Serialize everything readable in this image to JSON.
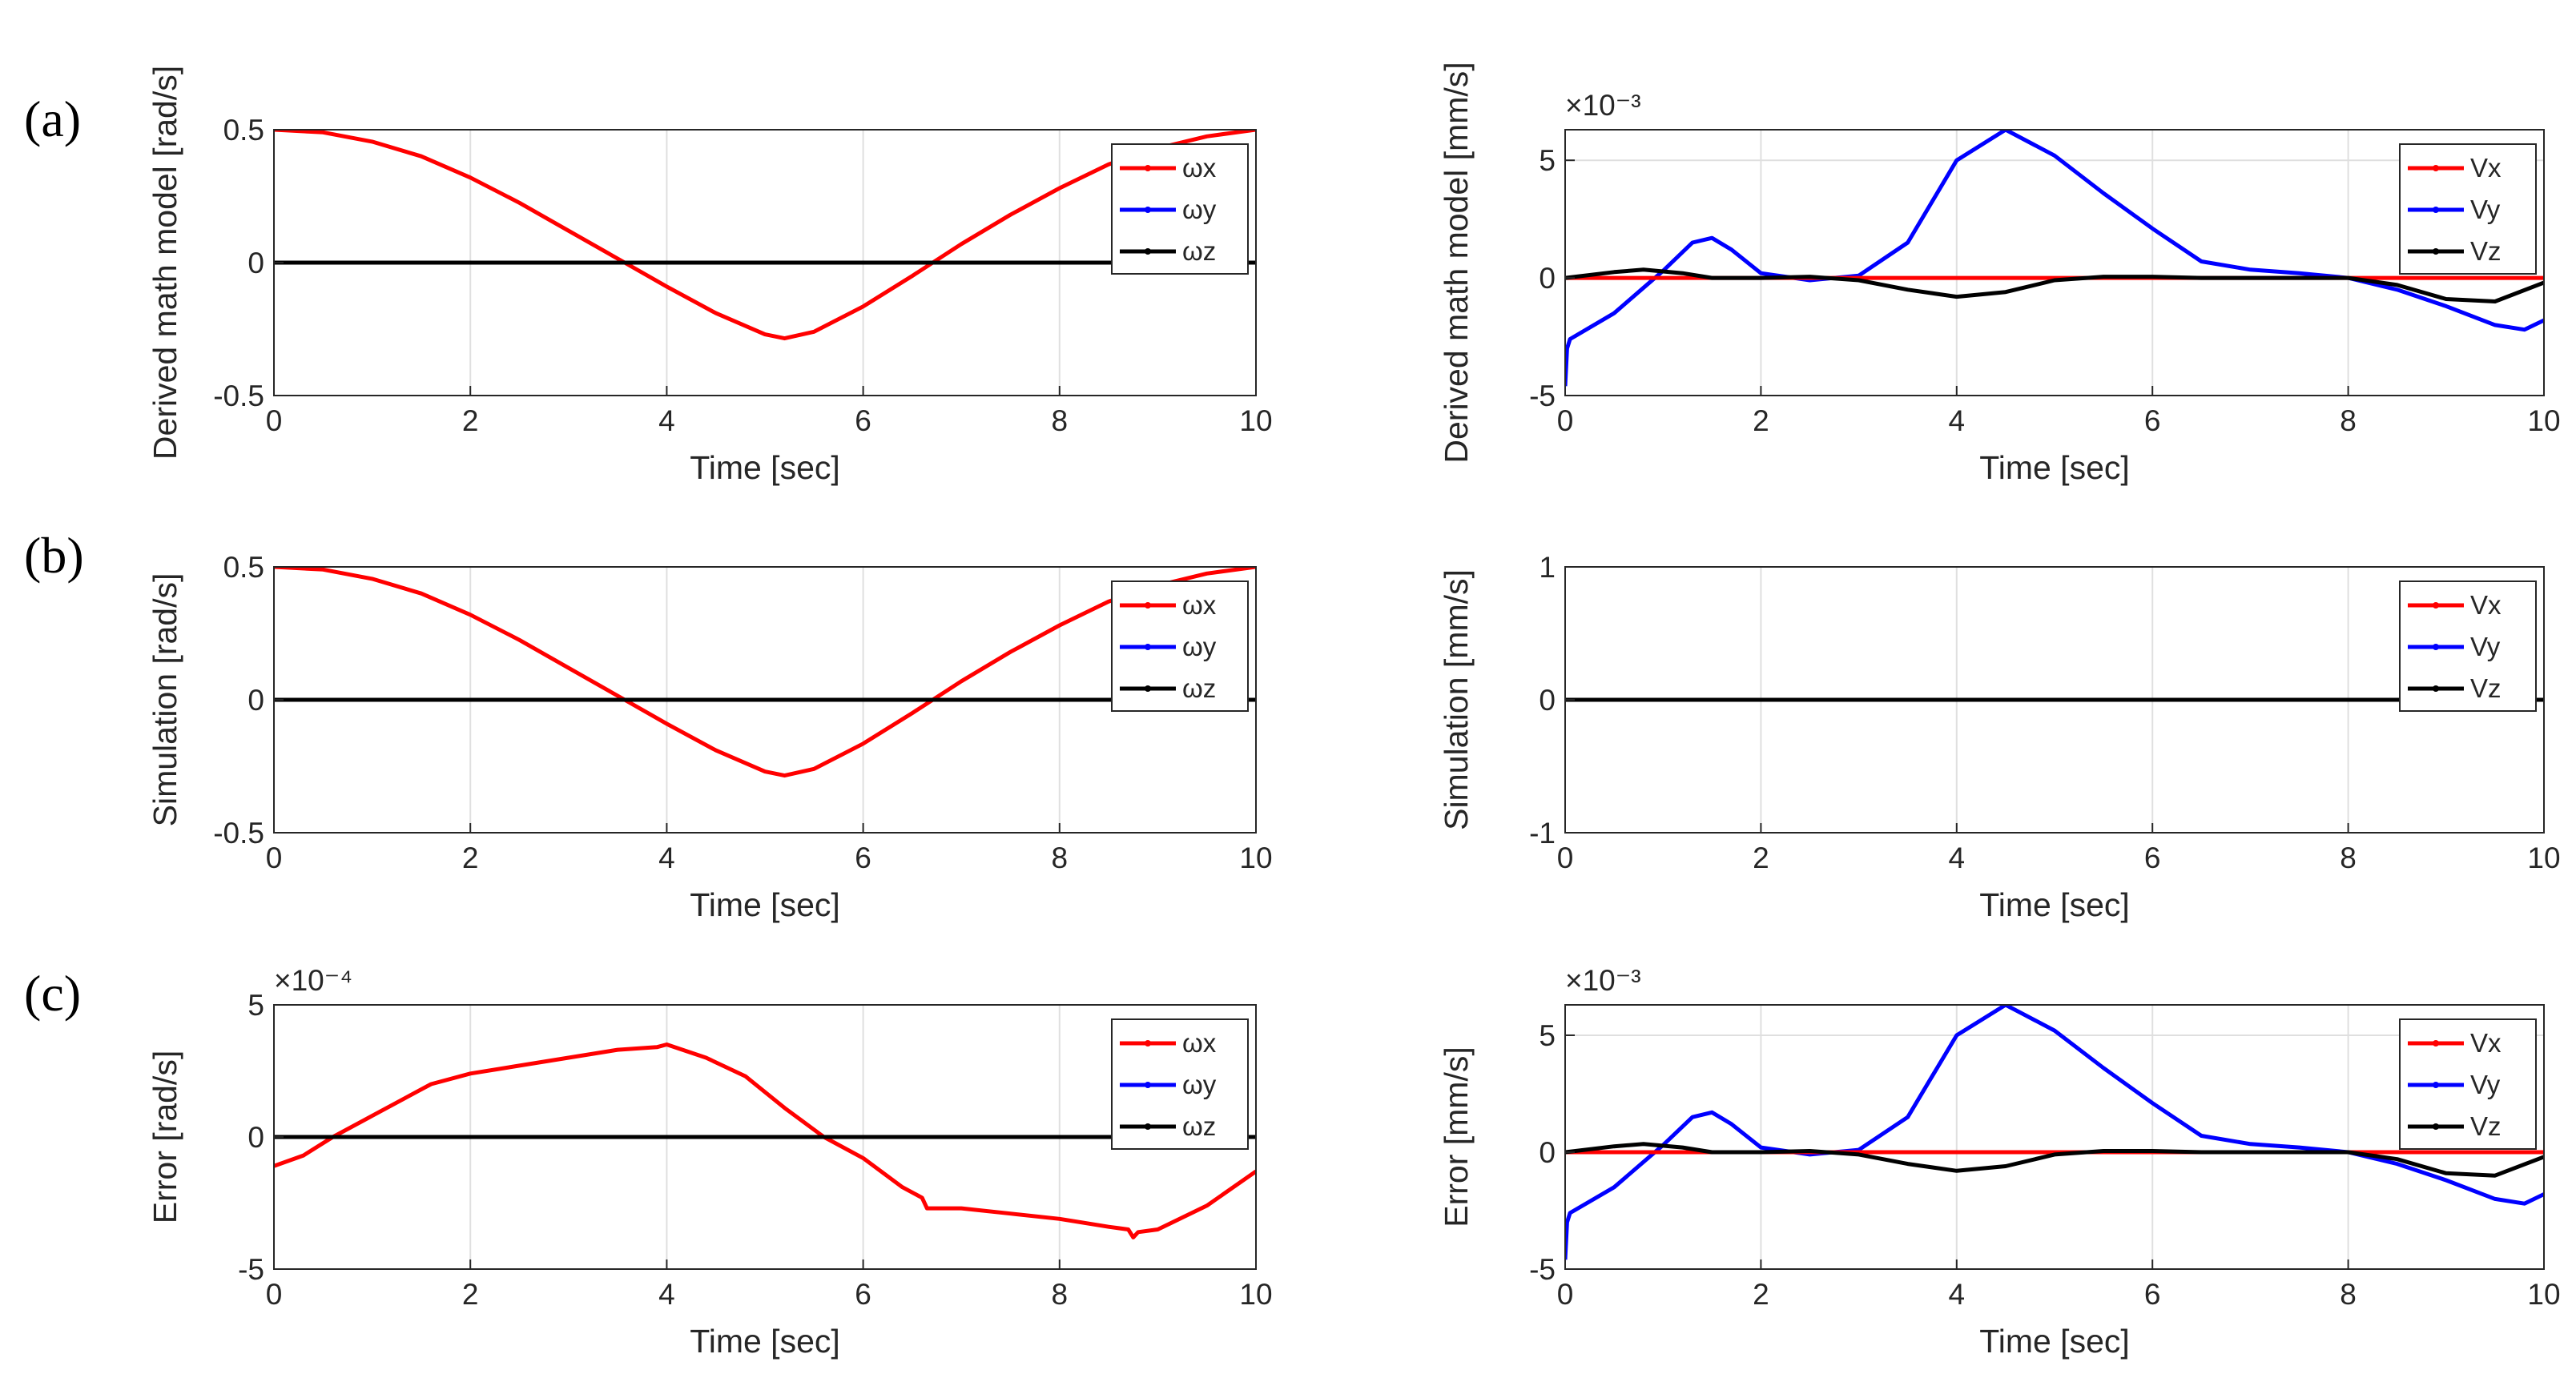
{
  "panel_labels": [
    "(a)",
    "(b)",
    "(c)"
  ],
  "colors": {
    "x": "#ff0000",
    "y": "#0000ff",
    "z": "#000000",
    "grid": "#dfdfdf",
    "axis": "#262626"
  },
  "chart_data": [
    {
      "id": "a-left",
      "type": "line",
      "title": "",
      "xlabel": "Time [sec]",
      "ylabel": "Derived math model [rad/s]",
      "xlim": [
        0,
        10
      ],
      "ylim": [
        -0.5,
        0.5
      ],
      "xticks": [
        0,
        2,
        4,
        6,
        8,
        10
      ],
      "yticks": [
        -0.5,
        0,
        0.5
      ],
      "xtick_labels": [
        "0",
        "2",
        "4",
        "6",
        "8",
        "10"
      ],
      "ytick_labels": [
        "-0.5",
        "0",
        "0.5"
      ],
      "exponent_label": "",
      "grid": true,
      "legend_position": "top-right",
      "series": [
        {
          "name": "ωx",
          "color": "#ff0000",
          "x": [
            0,
            0.5,
            1,
            1.5,
            2,
            2.5,
            3,
            3.5,
            4,
            4.5,
            5,
            5.2,
            5.5,
            6,
            6.5,
            7,
            7.5,
            8,
            8.5,
            9,
            9.5,
            10
          ],
          "y": [
            0.5,
            0.49,
            0.455,
            0.4,
            0.32,
            0.225,
            0.12,
            0.015,
            -0.09,
            -0.19,
            -0.27,
            -0.285,
            -0.26,
            -0.165,
            -0.05,
            0.07,
            0.18,
            0.28,
            0.37,
            0.43,
            0.475,
            0.5
          ]
        },
        {
          "name": "ωy",
          "color": "#0000ff",
          "x": [
            0,
            10
          ],
          "y": [
            0,
            0
          ]
        },
        {
          "name": "ωz",
          "color": "#000000",
          "x": [
            0,
            10
          ],
          "y": [
            0,
            0
          ]
        }
      ]
    },
    {
      "id": "a-right",
      "type": "line",
      "title": "",
      "xlabel": "Time [sec]",
      "ylabel": "Derived math model [mm/s]",
      "xlim": [
        0,
        10
      ],
      "ylim": [
        -5,
        6.3
      ],
      "xticks": [
        0,
        2,
        4,
        6,
        8,
        10
      ],
      "yticks": [
        -5,
        0,
        5
      ],
      "xtick_labels": [
        "0",
        "2",
        "4",
        "6",
        "8",
        "10"
      ],
      "ytick_labels": [
        "-5",
        "0",
        "5"
      ],
      "exponent_label": "×10⁻³",
      "grid": true,
      "legend_position": "top-right",
      "series": [
        {
          "name": "Vx",
          "color": "#ff0000",
          "x": [
            0,
            10
          ],
          "y": [
            0,
            0
          ]
        },
        {
          "name": "Vy",
          "color": "#0000ff",
          "x": [
            0,
            0.02,
            0.05,
            0.5,
            1,
            1.3,
            1.5,
            1.7,
            2,
            2.5,
            3,
            3.5,
            4,
            4.5,
            5,
            5.5,
            6,
            6.5,
            7,
            7.5,
            8,
            8.5,
            9,
            9.5,
            9.8,
            10
          ],
          "y": [
            -4.6,
            -3,
            -2.6,
            -1.5,
            0.3,
            1.5,
            1.7,
            1.2,
            0.2,
            -0.1,
            0.1,
            1.5,
            5,
            6.3,
            5.2,
            3.6,
            2.1,
            0.7,
            0.35,
            0.2,
            0,
            -0.5,
            -1.2,
            -2,
            -2.2,
            -1.8
          ]
        },
        {
          "name": "Vz",
          "color": "#000000",
          "x": [
            0,
            0.5,
            0.8,
            1.2,
            1.5,
            2,
            2.5,
            3,
            3.5,
            4,
            4.5,
            5,
            5.5,
            6,
            6.5,
            7,
            7.5,
            8,
            8.5,
            9,
            9.5,
            10
          ],
          "y": [
            0,
            0.25,
            0.35,
            0.2,
            0,
            0,
            0.05,
            -0.1,
            -0.5,
            -0.8,
            -0.6,
            -0.1,
            0.05,
            0.05,
            0,
            0,
            0,
            0,
            -0.3,
            -0.9,
            -1,
            -0.2
          ]
        }
      ]
    },
    {
      "id": "b-left",
      "type": "line",
      "title": "",
      "xlabel": "Time [sec]",
      "ylabel": "Simulation [rad/s]",
      "xlim": [
        0,
        10
      ],
      "ylim": [
        -0.5,
        0.5
      ],
      "xticks": [
        0,
        2,
        4,
        6,
        8,
        10
      ],
      "yticks": [
        -0.5,
        0,
        0.5
      ],
      "xtick_labels": [
        "0",
        "2",
        "4",
        "6",
        "8",
        "10"
      ],
      "ytick_labels": [
        "-0.5",
        "0",
        "0.5"
      ],
      "exponent_label": "",
      "grid": true,
      "legend_position": "top-right",
      "series": [
        {
          "name": "ωx",
          "color": "#ff0000",
          "x": [
            0,
            0.5,
            1,
            1.5,
            2,
            2.5,
            3,
            3.5,
            4,
            4.5,
            5,
            5.2,
            5.5,
            6,
            6.5,
            7,
            7.5,
            8,
            8.5,
            9,
            9.5,
            10
          ],
          "y": [
            0.5,
            0.49,
            0.455,
            0.4,
            0.32,
            0.225,
            0.12,
            0.015,
            -0.09,
            -0.19,
            -0.27,
            -0.285,
            -0.26,
            -0.165,
            -0.05,
            0.07,
            0.18,
            0.28,
            0.37,
            0.43,
            0.475,
            0.5
          ]
        },
        {
          "name": "ωy",
          "color": "#0000ff",
          "x": [
            0,
            10
          ],
          "y": [
            0,
            0
          ]
        },
        {
          "name": "ωz",
          "color": "#000000",
          "x": [
            0,
            10
          ],
          "y": [
            0,
            0
          ]
        }
      ]
    },
    {
      "id": "b-right",
      "type": "line",
      "title": "",
      "xlabel": "Time [sec]",
      "ylabel": "Simulation [mm/s]",
      "xlim": [
        0,
        10
      ],
      "ylim": [
        -1,
        1
      ],
      "xticks": [
        0,
        2,
        4,
        6,
        8,
        10
      ],
      "yticks": [
        -1,
        0,
        1
      ],
      "xtick_labels": [
        "0",
        "2",
        "4",
        "6",
        "8",
        "10"
      ],
      "ytick_labels": [
        "-1",
        "0",
        "1"
      ],
      "exponent_label": "",
      "grid": true,
      "legend_position": "top-right",
      "series": [
        {
          "name": "Vx",
          "color": "#ff0000",
          "x": [
            0,
            10
          ],
          "y": [
            0,
            0
          ]
        },
        {
          "name": "Vy",
          "color": "#0000ff",
          "x": [
            0,
            10
          ],
          "y": [
            0,
            0
          ]
        },
        {
          "name": "Vz",
          "color": "#000000",
          "x": [
            0,
            10
          ],
          "y": [
            0,
            0
          ]
        }
      ]
    },
    {
      "id": "c-left",
      "type": "line",
      "title": "",
      "xlabel": "Time [sec]",
      "ylabel": "Error [rad/s]",
      "xlim": [
        0,
        10
      ],
      "ylim": [
        -5,
        5
      ],
      "xticks": [
        0,
        2,
        4,
        6,
        8,
        10
      ],
      "yticks": [
        -5,
        0,
        5
      ],
      "xtick_labels": [
        "0",
        "2",
        "4",
        "6",
        "8",
        "10"
      ],
      "ytick_labels": [
        "-5",
        "0",
        "5"
      ],
      "exponent_label": "×10⁻⁴",
      "grid": true,
      "legend_position": "top-right",
      "series": [
        {
          "name": "ωx",
          "color": "#ff0000",
          "x": [
            0,
            0.3,
            0.6,
            1,
            1.4,
            1.5,
            1.6,
            2,
            2.5,
            3,
            3.5,
            3.9,
            4,
            4.4,
            4.8,
            5.2,
            5.6,
            6,
            6.4,
            6.6,
            6.65,
            7,
            7.5,
            8,
            8.5,
            8.7,
            8.75,
            8.8,
            9,
            9.5,
            10
          ],
          "y": [
            -1.1,
            -0.7,
            0,
            0.8,
            1.6,
            1.8,
            2,
            2.4,
            2.7,
            3,
            3.3,
            3.4,
            3.5,
            3,
            2.3,
            1.1,
            0,
            -0.8,
            -1.9,
            -2.3,
            -2.7,
            -2.7,
            -2.9,
            -3.1,
            -3.4,
            -3.5,
            -3.8,
            -3.6,
            -3.5,
            -2.6,
            -1.3
          ]
        },
        {
          "name": "ωy",
          "color": "#0000ff",
          "x": [
            0,
            10
          ],
          "y": [
            0,
            0
          ]
        },
        {
          "name": "ωz",
          "color": "#000000",
          "x": [
            0,
            10
          ],
          "y": [
            0,
            0
          ]
        }
      ]
    },
    {
      "id": "c-right",
      "type": "line",
      "title": "",
      "xlabel": "Time [sec]",
      "ylabel": "Error [mm/s]",
      "xlim": [
        0,
        10
      ],
      "ylim": [
        -5,
        6.3
      ],
      "xticks": [
        0,
        2,
        4,
        6,
        8,
        10
      ],
      "yticks": [
        -5,
        0,
        5
      ],
      "xtick_labels": [
        "0",
        "2",
        "4",
        "6",
        "8",
        "10"
      ],
      "ytick_labels": [
        "-5",
        "0",
        "5"
      ],
      "exponent_label": "×10⁻³",
      "grid": true,
      "legend_position": "top-right",
      "series": [
        {
          "name": "Vx",
          "color": "#ff0000",
          "x": [
            0,
            10
          ],
          "y": [
            0,
            0
          ]
        },
        {
          "name": "Vy",
          "color": "#0000ff",
          "x": [
            0,
            0.02,
            0.05,
            0.5,
            1,
            1.3,
            1.5,
            1.7,
            2,
            2.5,
            3,
            3.5,
            4,
            4.5,
            5,
            5.5,
            6,
            6.5,
            7,
            7.5,
            8,
            8.5,
            9,
            9.5,
            9.8,
            10
          ],
          "y": [
            -4.6,
            -3,
            -2.6,
            -1.5,
            0.3,
            1.5,
            1.7,
            1.2,
            0.2,
            -0.1,
            0.1,
            1.5,
            5,
            6.3,
            5.2,
            3.6,
            2.1,
            0.7,
            0.35,
            0.2,
            0,
            -0.5,
            -1.2,
            -2,
            -2.2,
            -1.8
          ]
        },
        {
          "name": "Vz",
          "color": "#000000",
          "x": [
            0,
            0.5,
            0.8,
            1.2,
            1.5,
            2,
            2.5,
            3,
            3.5,
            4,
            4.5,
            5,
            5.5,
            6,
            6.5,
            7,
            7.5,
            8,
            8.5,
            9,
            9.5,
            10
          ],
          "y": [
            0,
            0.25,
            0.35,
            0.2,
            0,
            0,
            0.05,
            -0.1,
            -0.5,
            -0.8,
            -0.6,
            -0.1,
            0.05,
            0.05,
            0,
            0,
            0,
            0,
            -0.3,
            -0.9,
            -1,
            -0.2
          ]
        }
      ]
    }
  ]
}
